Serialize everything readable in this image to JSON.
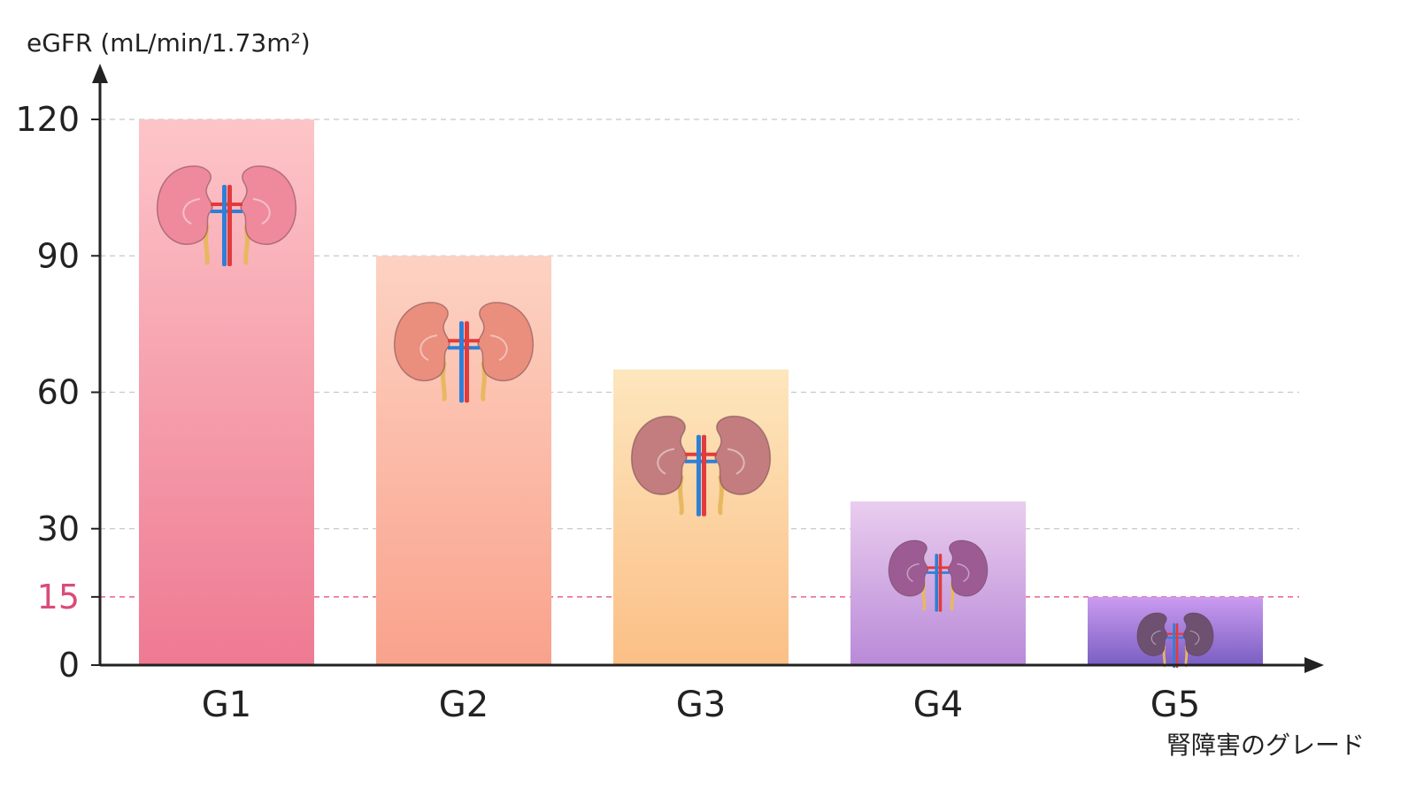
{
  "chart_data": {
    "type": "bar",
    "ylabel": "eGFR (mL/min/1.73m²)",
    "xlabel": "腎障害のグレード",
    "categories": [
      "G1",
      "G2",
      "G3",
      "G4",
      "G5"
    ],
    "values": [
      120,
      90,
      65,
      36,
      15
    ],
    "ylim": [
      0,
      130
    ],
    "yticks": [
      0,
      15,
      30,
      60,
      90,
      120
    ],
    "highlight_tick": 15,
    "grid": true,
    "bar_gradients": [
      {
        "top": "#fdc5c8",
        "bottom": "#ee7a92",
        "kidney": "#ef8a9c"
      },
      {
        "top": "#fdd2c2",
        "bottom": "#f9a28c",
        "kidney": "#ea8e7e"
      },
      {
        "top": "#fde6bd",
        "bottom": "#fbbf86",
        "kidney": "#c47d7f"
      },
      {
        "top": "#e9cdee",
        "bottom": "#b98ad8",
        "kidney": "#9c5c93"
      },
      {
        "top": "#cb9bf0",
        "bottom": "#7a5fc3",
        "kidney": "#6e5070"
      }
    ],
    "colors": {
      "axis": "#222222",
      "grid": "#c8c8c8",
      "highlight_line": "#e66489",
      "vessel_red": "#e23b3b",
      "vessel_blue": "#2f7fd8",
      "ureter": "#e8b860"
    },
    "icons": [
      "kidney-icon"
    ]
  }
}
